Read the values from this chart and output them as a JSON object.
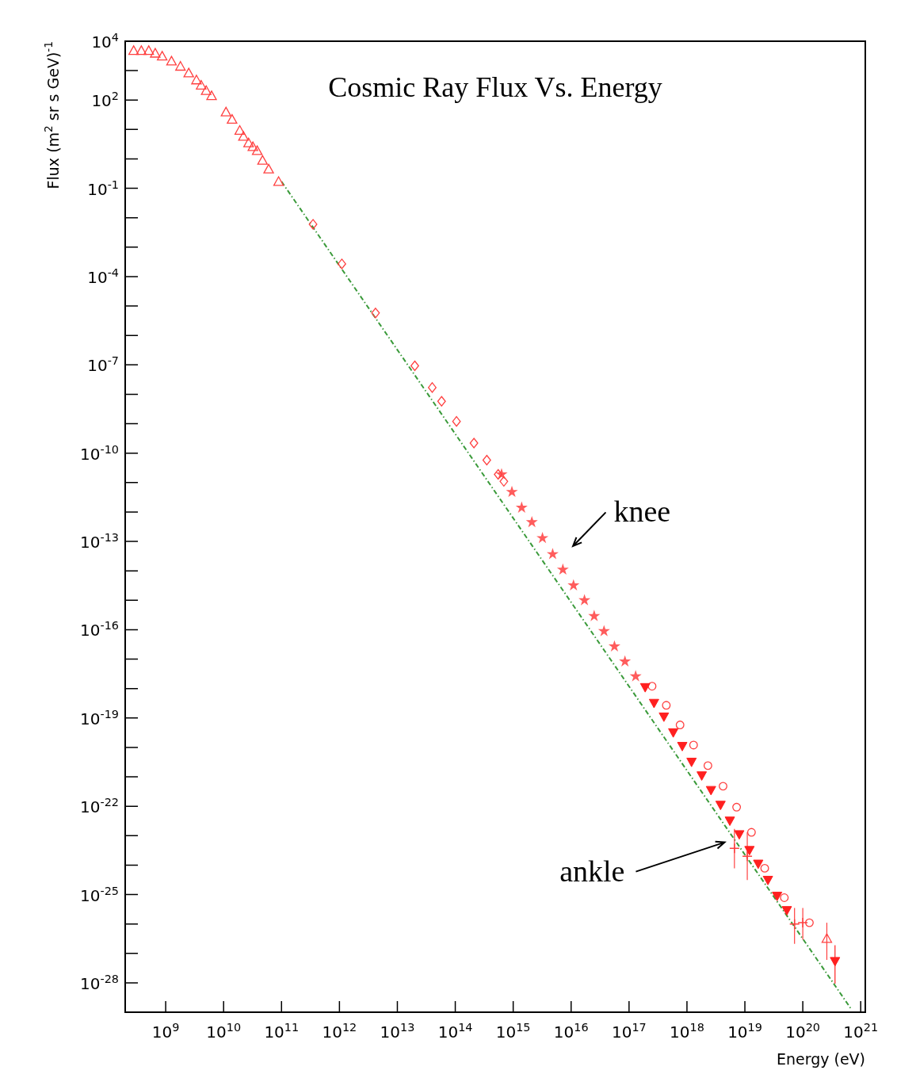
{
  "chart_data": {
    "type": "scatter",
    "title": "Cosmic Ray Flux Vs. Energy",
    "xlabel": "Energy (eV)",
    "ylabel": "Flux (m$^{2}$ sr s GeV)$^{-1}$",
    "log": "xy",
    "grid": false,
    "xlim": [
      200000000.0,
      1.2e+21
    ],
    "ylim": [
      1e-29,
      10000.0
    ],
    "xticks": [
      {
        "value": 1000000000.0,
        "label": "10$^{9}$"
      },
      {
        "value": 10000000000.0,
        "label": "10$^{10}$"
      },
      {
        "value": 100000000000.0,
        "label": "10$^{11}$"
      },
      {
        "value": 1000000000000.0,
        "label": "10$^{12}$"
      },
      {
        "value": 10000000000000.0,
        "label": "10$^{13}$"
      },
      {
        "value": 100000000000000.0,
        "label": "10$^{14}$"
      },
      {
        "value": 1000000000000000.0,
        "label": "10$^{15}$"
      },
      {
        "value": 1e+16,
        "label": "10$^{16}$"
      },
      {
        "value": 1e+17,
        "label": "10$^{17}$"
      },
      {
        "value": 1e+18,
        "label": "10$^{18}$"
      },
      {
        "value": 1e+19,
        "label": "10$^{19}$"
      },
      {
        "value": 1e+20,
        "label": "10$^{20}$"
      },
      {
        "value": 1e+21,
        "label": "10$^{21}$"
      }
    ],
    "yticks": [
      {
        "value": 10000.0,
        "label": "10$^{4}$"
      },
      {
        "value": 1000.0,
        "label": null
      },
      {
        "value": 100.0,
        "label": "10$^{2}$"
      },
      {
        "value": 10.0,
        "label": null
      },
      {
        "value": 1,
        "label": null
      },
      {
        "value": 0.1,
        "label": "10$^{-1}$"
      },
      {
        "value": 0.01,
        "label": null
      },
      {
        "value": 0.001,
        "label": null
      },
      {
        "value": 0.0001,
        "label": "10$^{-4}$"
      },
      {
        "value": 1e-05,
        "label": null
      },
      {
        "value": 1e-06,
        "label": null
      },
      {
        "value": 1e-07,
        "label": "10$^{-7}$"
      },
      {
        "value": 1e-08,
        "label": null
      },
      {
        "value": 1e-09,
        "label": null
      },
      {
        "value": 1e-10,
        "label": "10$^{-10}$"
      },
      {
        "value": 1e-11,
        "label": null
      },
      {
        "value": 1e-12,
        "label": null
      },
      {
        "value": 1e-13,
        "label": "10$^{-13}$"
      },
      {
        "value": 1e-14,
        "label": null
      },
      {
        "value": 1e-15,
        "label": null
      },
      {
        "value": 1e-16,
        "label": "10$^{-16}$"
      },
      {
        "value": 1e-17,
        "label": null
      },
      {
        "value": 1e-18,
        "label": null
      },
      {
        "value": 1e-19,
        "label": "10$^{-19}$"
      },
      {
        "value": 1e-20,
        "label": null
      },
      {
        "value": 1e-21,
        "label": null
      },
      {
        "value": 1e-22,
        "label": "10$^{-22}$"
      },
      {
        "value": 1e-23,
        "label": null
      },
      {
        "value": 1e-24,
        "label": null
      },
      {
        "value": 1e-25,
        "label": "10$^{-25}$"
      },
      {
        "value": 1e-26,
        "label": null
      },
      {
        "value": 1e-27,
        "label": null
      },
      {
        "value": 1e-28,
        "label": "10$^{-28}$"
      }
    ],
    "annotations": [
      "knee",
      "ankle"
    ],
    "series": [
      {
        "type": "line",
        "color": "#3a9a3a",
        "line_style": "dashed",
        "marker": "none",
        "x": [
          100000000000.0,
          7e+20
        ],
        "values": [
          0.17,
          1.2e-29
        ]
      },
      {
        "color": "#ff4040",
        "marker": "triangle",
        "x": [
          280000000.0,
          380000000.0,
          510000000.0,
          660000000.0,
          870000000.0,
          1260000000.0,
          1800000000.0,
          2500000000.0,
          3400000000.0,
          4100000000.0,
          5000000000.0,
          6200000000.0,
          11000000000.0,
          14000000000.0,
          19000000000.0,
          22000000000.0,
          27000000000.0,
          32000000000.0,
          38000000000.0,
          47000000000.0,
          60000000000.0,
          89000000000.0,
          2.6e+20
        ],
        "values": [
          4800,
          4800,
          4800,
          3900,
          3100,
          2100,
          1400,
          830,
          480,
          320,
          210,
          140,
          39,
          22,
          9.3,
          5.8,
          3.5,
          2.6,
          1.9,
          0.89,
          0.45,
          0.17,
          3.2e-27
        ],
        "errors": [
          null,
          null,
          null,
          null,
          null,
          null,
          null,
          null,
          null,
          null,
          null,
          null,
          null,
          null,
          null,
          null,
          null,
          null,
          null,
          null,
          null,
          null,
          [
            6e-28,
            1.1e-26
          ]
        ]
      },
      {
        "color": "#ff4040",
        "marker": "diamond",
        "x": [
          350000000000.0,
          1100000000000.0,
          4200000000000.0,
          20000000000000.0,
          40000000000000.0,
          58000000000000.0,
          105000000000000.0,
          210000000000000.0,
          350000000000000.0,
          550000000000000.0,
          690000000000000.0
        ],
        "values": [
          0.006,
          0.00027,
          5.8e-06,
          9.3e-08,
          1.7e-08,
          5.8e-09,
          1.2e-09,
          2.2e-10,
          5.8e-11,
          1.9e-11,
          1.1e-11
        ]
      },
      {
        "color": "#ff4040",
        "marker": "star",
        "x": [
          630000000000000.0,
          950000000000000.0,
          1400000000000000.0,
          2100000000000000.0,
          3200000000000000.0,
          4800000000000000.0,
          7200000000000000.0,
          1.1e+16,
          1.7e+16,
          2.5e+16,
          3.7e+16,
          5.6e+16,
          8.5e+16,
          1.3e+17
        ],
        "values": [
          1.9e-11,
          4.8e-12,
          1.4e-12,
          4.5e-13,
          1.3e-13,
          3.7e-14,
          1.1e-14,
          3.2e-15,
          1e-15,
          2.9e-16,
          8.9e-17,
          2.7e-17,
          8.3e-18,
          2.6e-18
        ]
      },
      {
        "color": "#ff4040",
        "marker": "circle",
        "x": [
          2.5e+17,
          4.4e+17,
          7.6e+17,
          1.3e+18,
          2.3e+18,
          4.2e+18,
          7.2e+18,
          1.3e+19,
          2.2e+19,
          4.8e+19,
          1.3e+20
        ],
        "values": [
          1.2e-18,
          2.7e-19,
          5.8e-20,
          1.2e-20,
          2.4e-21,
          4.8e-22,
          9.3e-23,
          1.3e-23,
          7.8e-25,
          7.8e-26,
          1.1e-26
        ]
      },
      {
        "color": "#ff4040",
        "marker": "cross",
        "x": [
          6.6e+18,
          1.1e+19,
          7.2e+19,
          1e+20
        ],
        "values": [
          3.7e-24,
          2e-24,
          1e-26,
          1.1e-26
        ],
        "errors": [
          [
            7.8e-25,
            1.7e-23
          ],
          [
            3.1e-25,
            1.3e-23
          ],
          [
            2.1e-27,
            3.5e-26
          ],
          [
            2.9e-27,
            3.5e-26
          ]
        ]
      },
      {
        "color": "#ff2020",
        "marker": "triangle-down",
        "x": [
          1.9e+17,
          2.7e+17,
          4e+17,
          5.8e+17,
          8.3e+17,
          1.2e+18,
          1.8e+18,
          2.6e+18,
          3.8e+18,
          5.5e+18,
          8e+18,
          1.2e+19,
          1.7e+19,
          2.5e+19,
          3.6e+19,
          5.3e+19,
          3.6e+20
        ],
        "values": [
          1.1e-18,
          3.2e-19,
          1.1e-19,
          3.2e-20,
          1.1e-20,
          3.2e-21,
          1.1e-21,
          3.5e-22,
          1.1e-22,
          3.2e-23,
          1.1e-23,
          3.2e-24,
          1.1e-24,
          3.1e-25,
          8.9e-26,
          2.9e-26,
          5.4e-28
        ],
        "errors": [
          null,
          null,
          null,
          null,
          null,
          null,
          null,
          null,
          null,
          null,
          null,
          null,
          null,
          null,
          null,
          null,
          [
            9.3e-29,
            1.9e-27
          ]
        ]
      }
    ]
  }
}
